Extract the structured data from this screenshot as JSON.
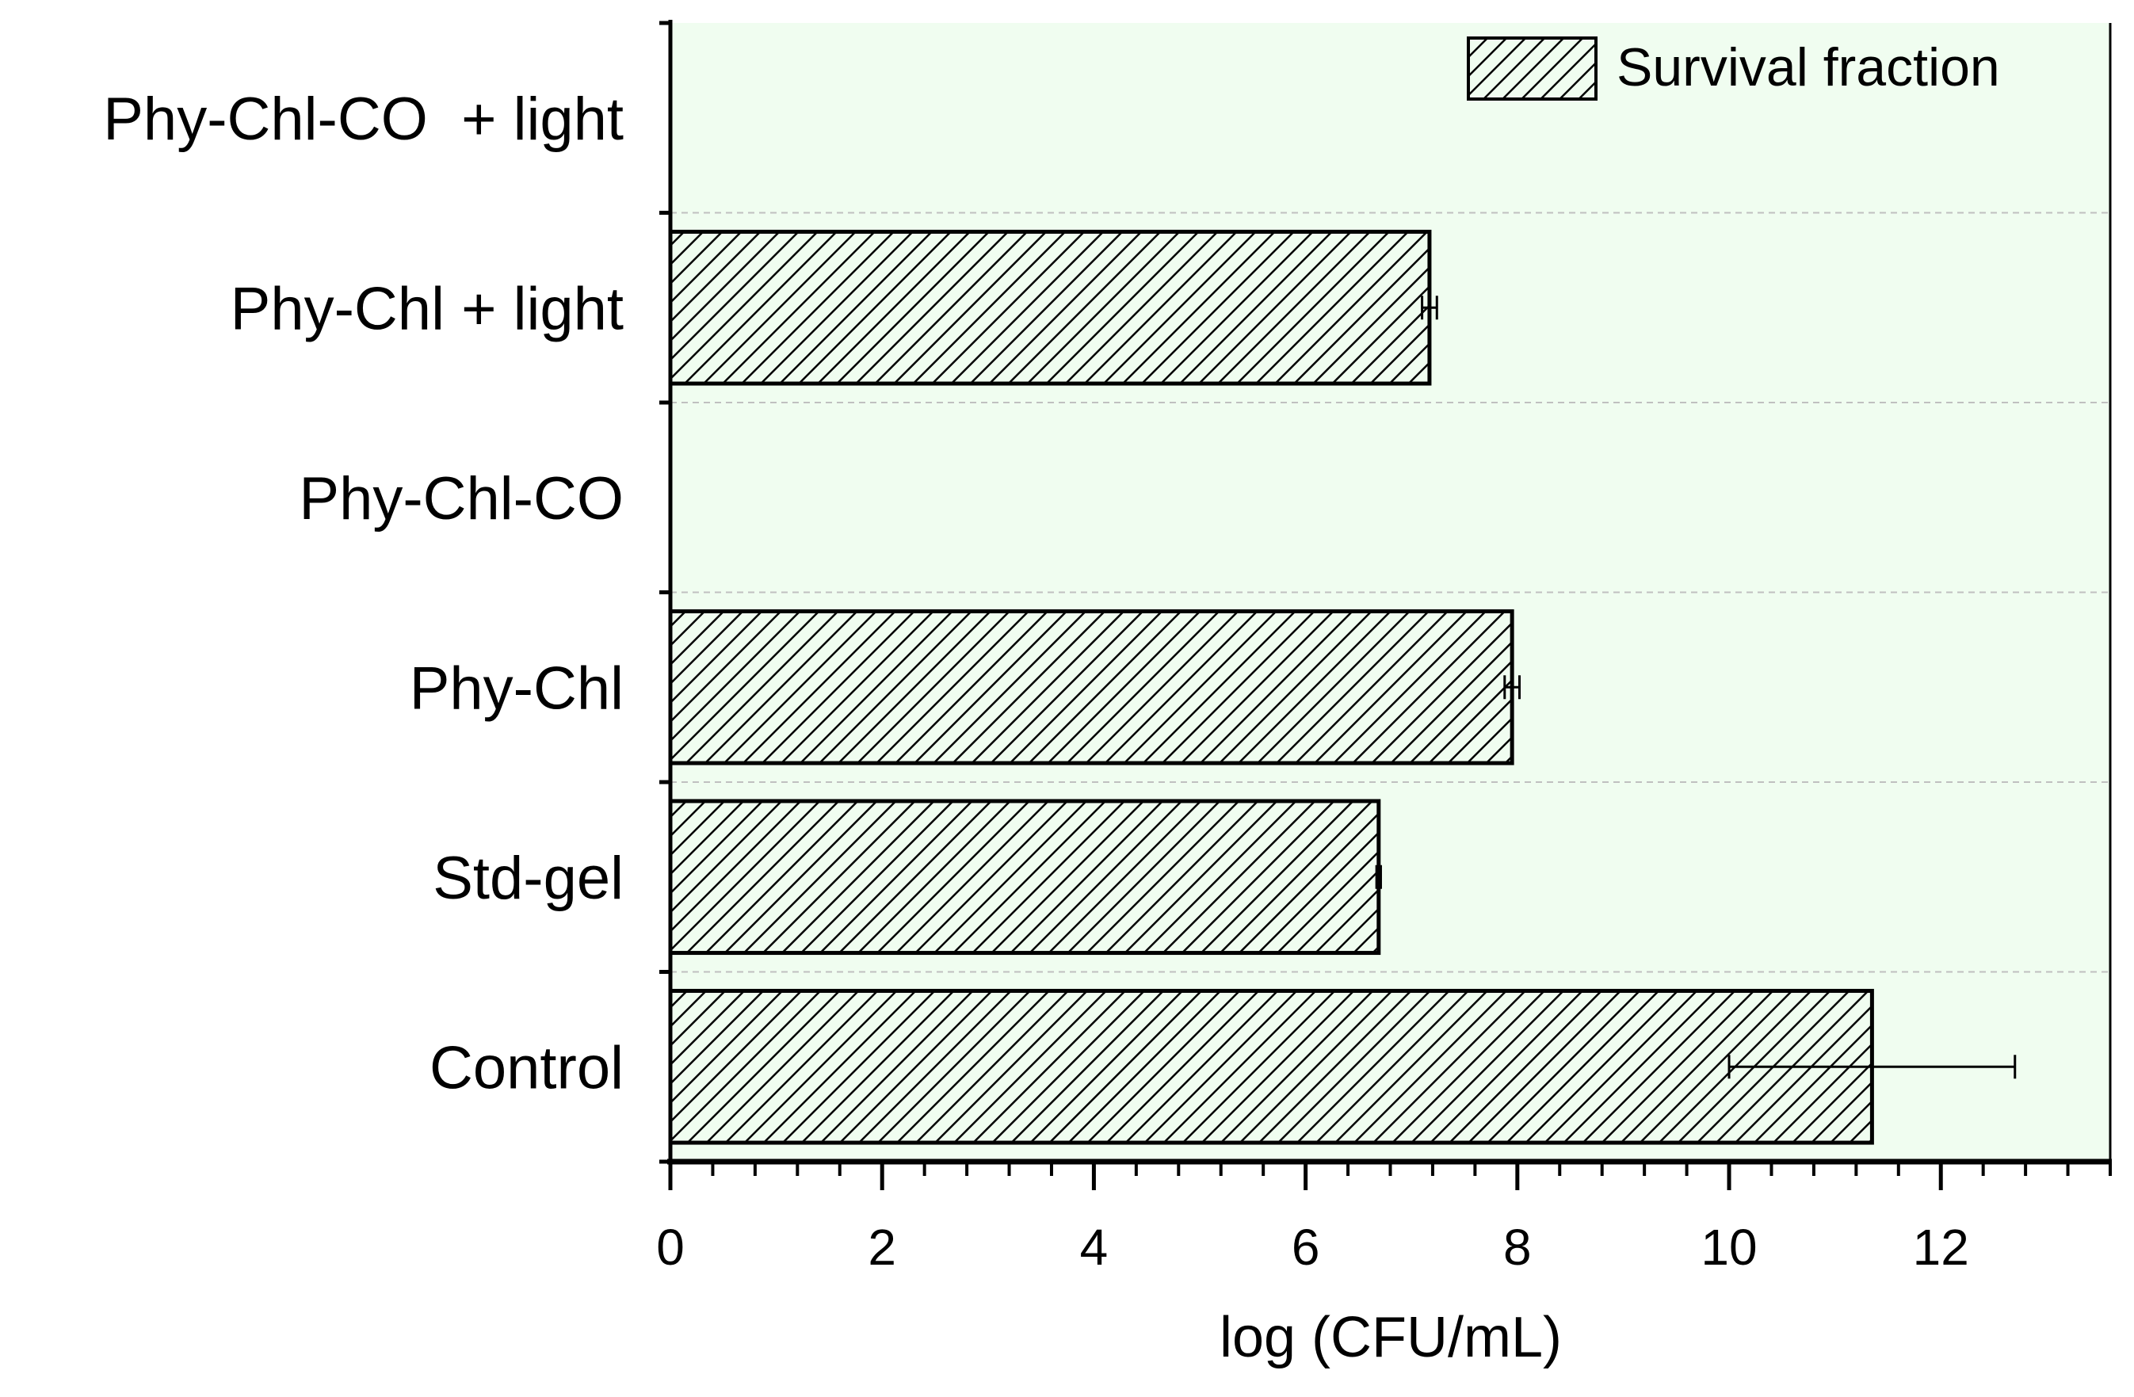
{
  "chart_data": {
    "type": "bar",
    "orientation": "horizontal",
    "title": "",
    "xlabel": "log (CFU/mL)",
    "ylabel": "",
    "xlim": [
      0,
      13.6
    ],
    "x_ticks": [
      0,
      2,
      4,
      6,
      8,
      10,
      12
    ],
    "x_minor_step": 0.4,
    "categories": [
      "Control",
      "Std-gel",
      "Phy-Chl",
      "Phy-Chl-CO",
      "Phy-Chl + light",
      "Phy-Chl-CO  + light"
    ],
    "series": [
      {
        "name": "Survival fraction",
        "values": [
          11.35,
          6.69,
          7.95,
          null,
          7.17,
          null
        ],
        "errors": [
          1.35,
          0.02,
          0.07,
          null,
          0.07,
          null
        ],
        "pattern": "diagonal-hatch"
      }
    ],
    "grid": "horizontal dashed at category boundaries",
    "legend": "top-right",
    "colors": {
      "plot_background": "#f0fdf0",
      "bar_stroke": "#000000",
      "grid": "#c0c0c0"
    }
  }
}
